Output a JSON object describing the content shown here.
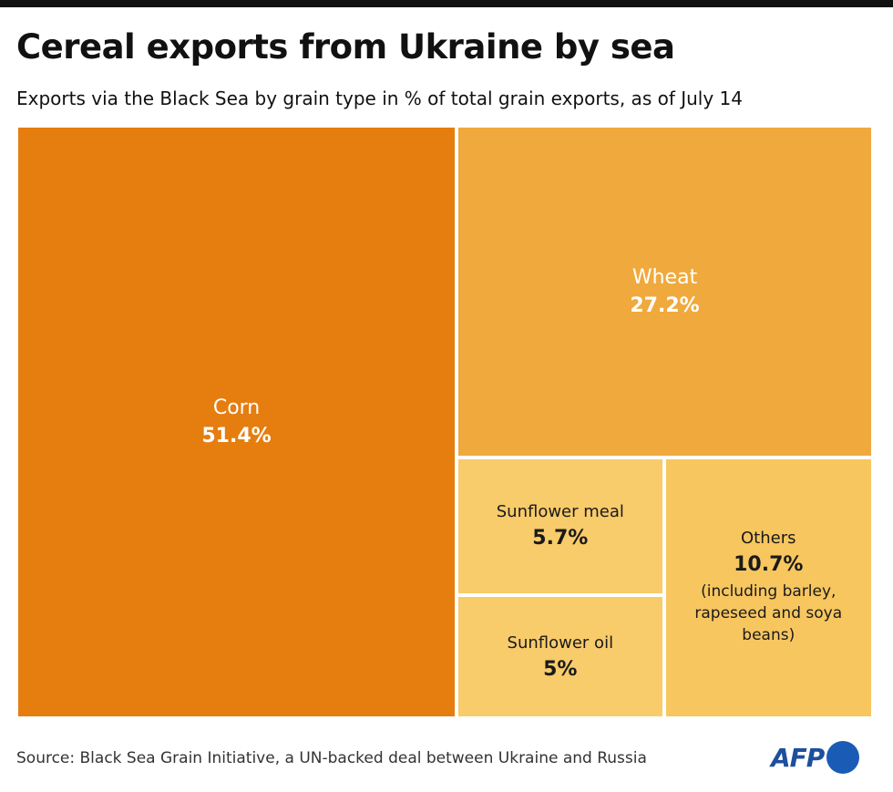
{
  "chart_data": {
    "type": "treemap",
    "title": "Cereal exports from Ukraine by sea",
    "subtitle": "Exports via the Black Sea by grain type in % of total grain exports, as of July 14",
    "categories": [
      "Corn",
      "Wheat",
      "Sunflower meal",
      "Sunflower oil",
      "Others"
    ],
    "values": [
      51.4,
      27.2,
      5.7,
      5,
      10.7
    ],
    "value_labels": [
      "51.4%",
      "27.2%",
      "5.7%",
      "5%",
      "10.7%"
    ],
    "colors": [
      "#e67d0f",
      "#f0a93d",
      "#f8cb6b",
      "#f8cb6b",
      "#f7c65f"
    ],
    "category_notes": {
      "Others": "(including barley, rapeseed and soya beans)"
    },
    "source": "Source: Black Sea Grain Initiative, a UN-backed deal between Ukraine and Russia",
    "logo": "AFP"
  }
}
